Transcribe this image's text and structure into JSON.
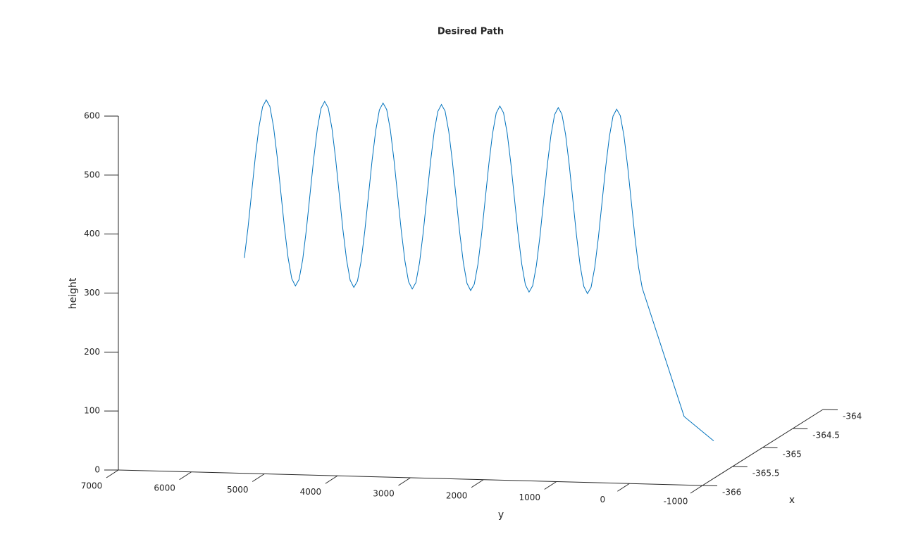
{
  "chart_data": {
    "type": "line3d",
    "title": "Desired Path",
    "xlabel": "x",
    "ylabel": "y",
    "zlabel": "height",
    "xlim": [
      -366,
      -364
    ],
    "xticks": [
      -366,
      -365.5,
      -365,
      -364.5,
      -364
    ],
    "ylim": [
      -1000,
      7000
    ],
    "yticks": [
      7000,
      6000,
      5000,
      4000,
      3000,
      2000,
      1000,
      0,
      -1000
    ],
    "zlim": [
      0,
      600
    ],
    "zticks": [
      0,
      100,
      200,
      300,
      400,
      500,
      600
    ],
    "series": [
      {
        "color": "#0072bd",
        "x": [
          -365,
          -365,
          -365,
          -365,
          -365,
          -365,
          -365,
          -365,
          -365,
          -365,
          -365,
          -365,
          -365,
          -365,
          -365,
          -365,
          -365,
          -365,
          -365,
          -365,
          -365,
          -365,
          -365,
          -365,
          -365,
          -365,
          -365,
          -365,
          -365,
          -365,
          -365,
          -365,
          -365,
          -365,
          -365,
          -365,
          -365,
          -365,
          -365,
          -365,
          -365,
          -365,
          -365,
          -365,
          -365,
          -365,
          -365,
          -365,
          -365,
          -365,
          -365,
          -365,
          -365,
          -365,
          -365,
          -365,
          -365,
          -365,
          -365,
          -365,
          -365,
          -365,
          -365,
          -365,
          -365,
          -365,
          -365,
          -365,
          -365,
          -365,
          -365,
          -365,
          -365,
          -365,
          -365,
          -365,
          -365,
          -365,
          -365,
          -365,
          -365,
          -365,
          -365,
          -365,
          -365,
          -365,
          -365,
          -365,
          -365,
          -365,
          -365,
          -365,
          -365,
          -365,
          -365,
          -365,
          -365,
          -365,
          -365,
          -365,
          -365,
          -365,
          -365,
          -365,
          -365,
          -365,
          -365,
          -365,
          -365,
          -365,
          -365,
          -365
        ],
        "y": [
          6100,
          6050,
          6000,
          5950,
          5900,
          5850,
          5800,
          5750,
          5700,
          5650,
          5600,
          5550,
          5500,
          5450,
          5400,
          5350,
          5300,
          5250,
          5200,
          5150,
          5100,
          5050,
          5000,
          4950,
          4900,
          4850,
          4800,
          4750,
          4700,
          4650,
          4600,
          4550,
          4500,
          4450,
          4400,
          4350,
          4300,
          4250,
          4200,
          4150,
          4100,
          4050,
          4000,
          3950,
          3900,
          3850,
          3800,
          3750,
          3700,
          3650,
          3600,
          3550,
          3500,
          3450,
          3400,
          3350,
          3300,
          3250,
          3200,
          3150,
          3100,
          3050,
          3000,
          2950,
          2900,
          2850,
          2800,
          2750,
          2700,
          2650,
          2600,
          2550,
          2500,
          2450,
          2400,
          2350,
          2300,
          2250,
          2200,
          2150,
          2100,
          2050,
          2000,
          1950,
          1900,
          1850,
          1800,
          1750,
          1700,
          1650,
          1600,
          1550,
          1500,
          1450,
          1400,
          1350,
          1300,
          1250,
          1200,
          1150,
          1100,
          1050,
          1000,
          950,
          900,
          850,
          800,
          750,
          700,
          650,
          76,
          -329
        ],
        "z": [
          298,
          349,
          409,
          469,
          520,
          555,
          567,
          556,
          522,
          471,
          411,
          351,
          300,
          265,
          253,
          264,
          298,
          349,
          409,
          469,
          520,
          555,
          567,
          556,
          522,
          471,
          411,
          351,
          300,
          265,
          253,
          264,
          298,
          349,
          409,
          469,
          520,
          555,
          567,
          556,
          522,
          471,
          411,
          351,
          300,
          265,
          253,
          264,
          298,
          349,
          409,
          469,
          520,
          555,
          567,
          556,
          522,
          471,
          411,
          351,
          300,
          265,
          253,
          264,
          298,
          349,
          409,
          469,
          520,
          555,
          567,
          556,
          522,
          471,
          411,
          351,
          300,
          265,
          253,
          264,
          298,
          349,
          409,
          469,
          520,
          555,
          567,
          556,
          522,
          471,
          411,
          351,
          300,
          265,
          253,
          264,
          298,
          349,
          409,
          469,
          520,
          555,
          567,
          556,
          522,
          471,
          411,
          351,
          300,
          265,
          49,
          9
        ]
      }
    ]
  }
}
